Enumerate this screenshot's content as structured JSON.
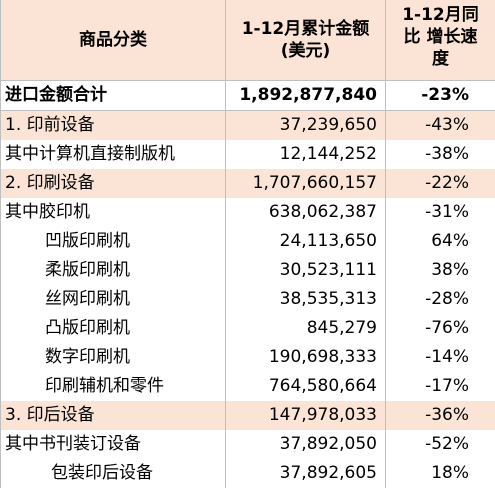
{
  "table": {
    "header": [
      [
        "商品分类"
      ],
      [
        "1-12月累计金额",
        "(美元)"
      ],
      [
        "1-12月同",
        "比  增长速",
        "度"
      ]
    ],
    "rows": [
      [
        "进口金额合计",
        "1,892,877,840",
        "-23%"
      ],
      [
        "1. 印前设备",
        "37,239,650",
        "-43%"
      ],
      [
        "其中计算机直接制版机",
        "12,144,252",
        "-38%"
      ],
      [
        "2. 印刷设备",
        "1,707,660,157",
        "-22%"
      ],
      [
        "其中胶印机",
        "638,062,387",
        "-31%"
      ],
      [
        "凹版印刷机",
        "24,113,650",
        "64%"
      ],
      [
        "柔版印刷机",
        "30,523,111",
        "38%"
      ],
      [
        "丝网印刷机",
        "38,535,313",
        "-28%"
      ],
      [
        "凸版印刷机",
        "845,279",
        "-76%"
      ],
      [
        "数字印刷机",
        "190,698,333",
        "-14%"
      ],
      [
        "印刷辅机和零件",
        "764,580,664",
        "-17%"
      ],
      [
        "3.  印后设备",
        "147,978,033",
        "-36%"
      ],
      [
        "其中书刊装订设备",
        "37,892,050",
        "-52%"
      ],
      [
        "包装印后设备",
        "37,892,605",
        "18%"
      ]
    ]
  }
}
